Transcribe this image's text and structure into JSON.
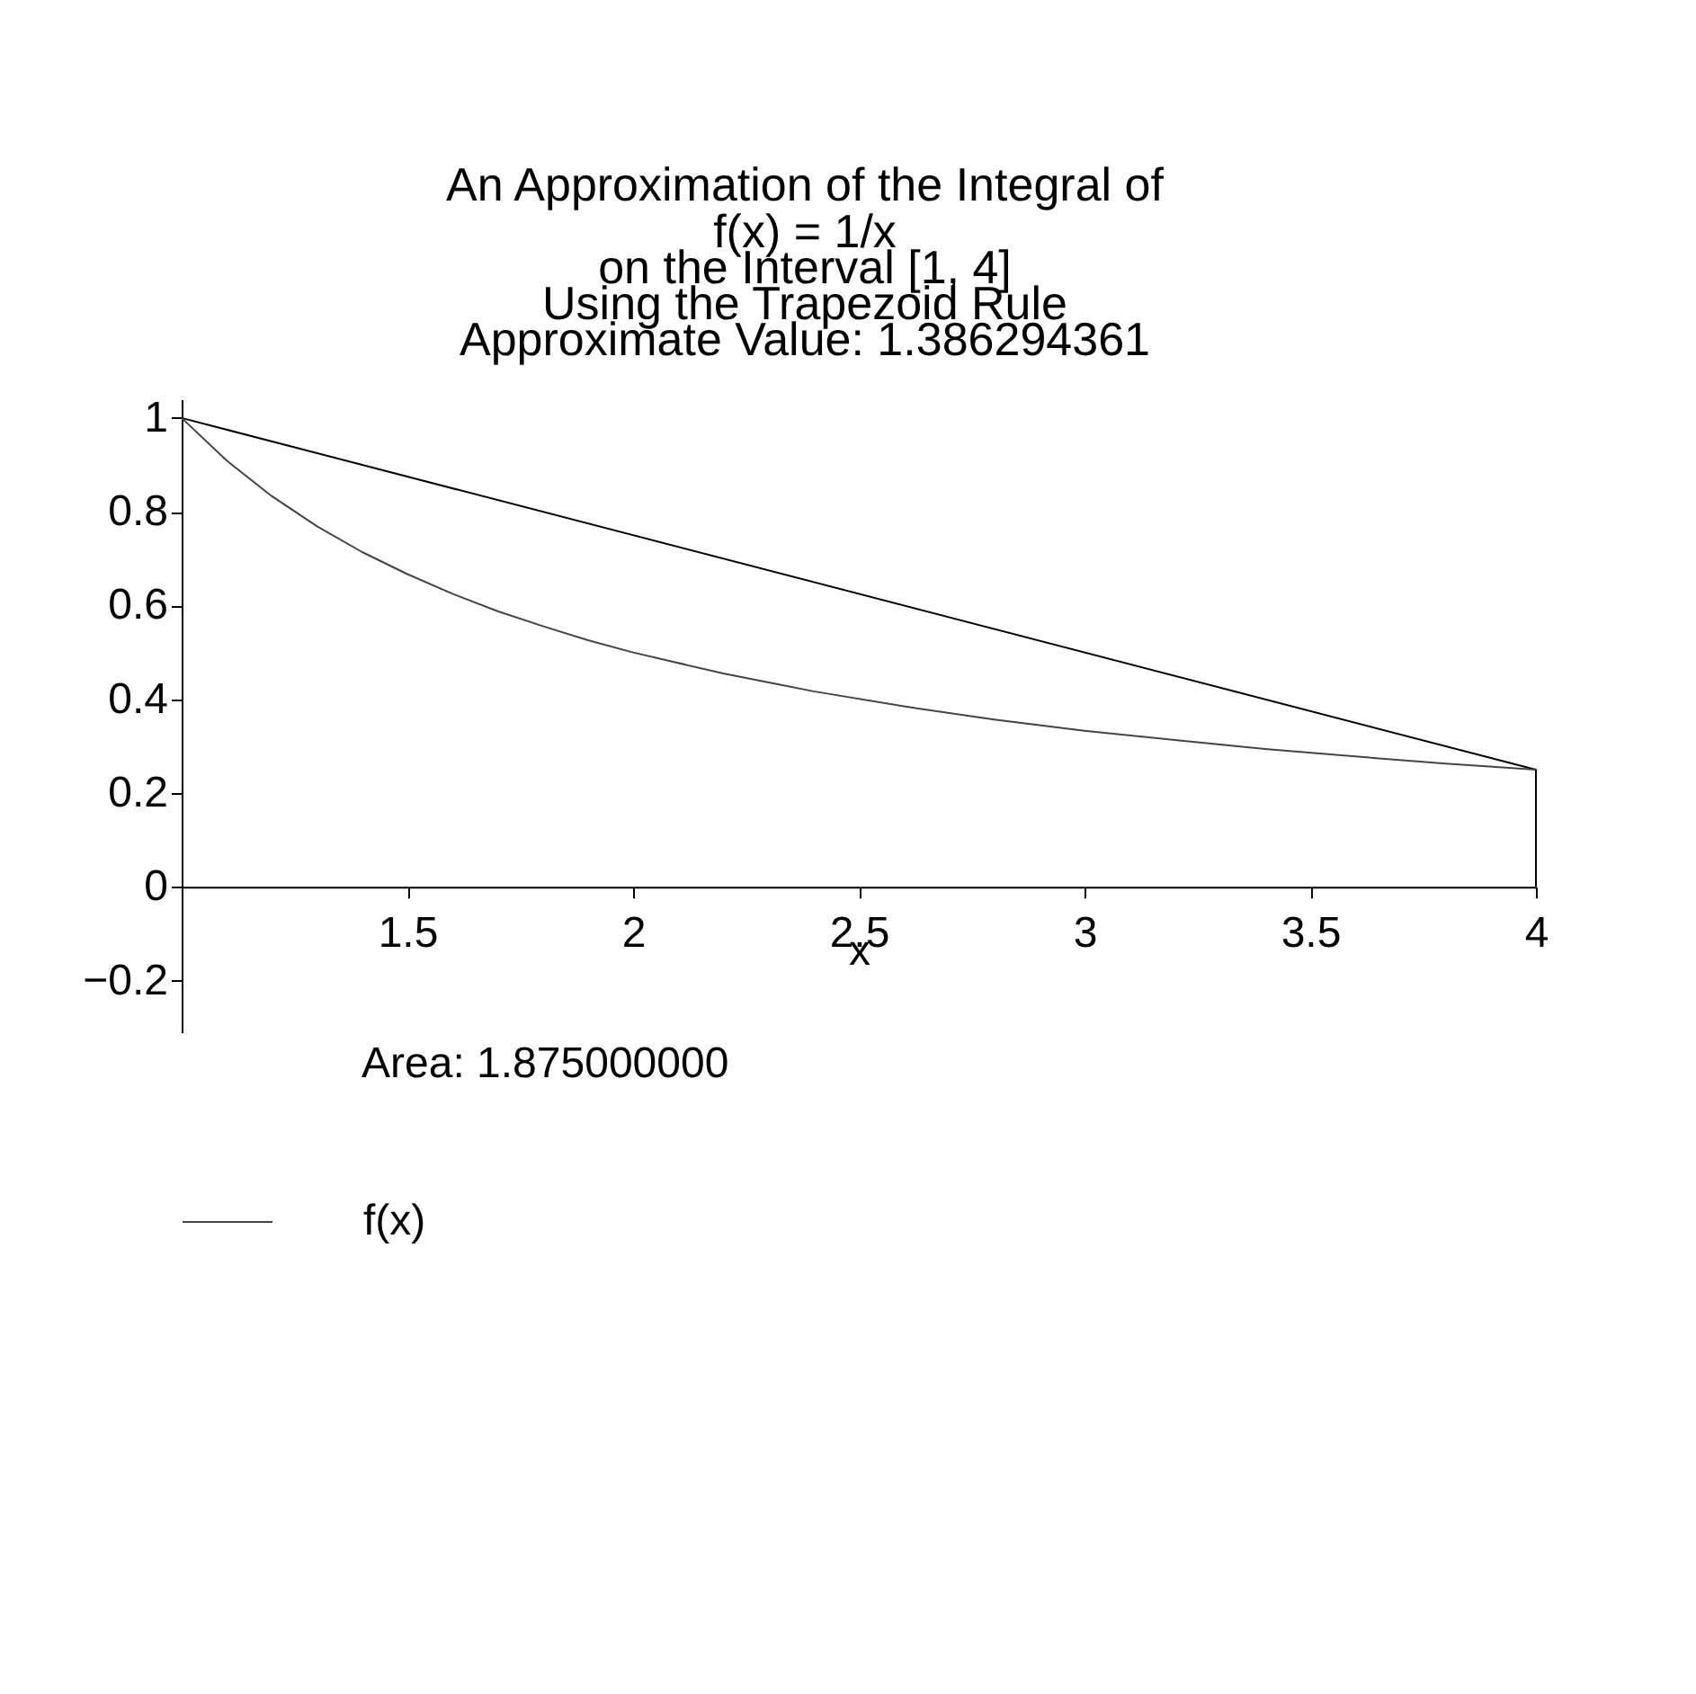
{
  "chart_data": {
    "type": "line",
    "title": "An Approximation of the Integral of",
    "subtitle": "f(x) = 1/x\non the Interval [1, 4]\nUsing the Trapezoid Rule\nApproximate Value: 1.386294361",
    "xlabel": "x",
    "annotations": [
      "Area: 1.875000000"
    ],
    "series": [
      {
        "x": [
          1,
          4,
          4
        ],
        "values": [
          1,
          0.25,
          0
        ],
        "color": "#000000"
      },
      {
        "name": "f(x)",
        "color": "#444444",
        "x": [
          1,
          1.1,
          1.2,
          1.3,
          1.4,
          1.5,
          1.6,
          1.7,
          1.8,
          1.9,
          2,
          2.2,
          2.4,
          2.6,
          2.8,
          3,
          3.2,
          3.4,
          3.6,
          3.8,
          4
        ],
        "values": [
          1,
          0.909,
          0.833,
          0.769,
          0.714,
          0.667,
          0.625,
          0.588,
          0.556,
          0.526,
          0.5,
          0.455,
          0.417,
          0.385,
          0.357,
          0.333,
          0.313,
          0.294,
          0.278,
          0.263,
          0.25
        ]
      }
    ],
    "xlim": [
      1,
      4
    ],
    "xticks": [
      1.5,
      2,
      2.5,
      3,
      3.5,
      4
    ],
    "ylim": [
      -0.31,
      1.04
    ],
    "yticks": [
      -0.2,
      0,
      0.2,
      0.4,
      0.6,
      0.8,
      1
    ],
    "grid": false,
    "legend": "bottom"
  }
}
